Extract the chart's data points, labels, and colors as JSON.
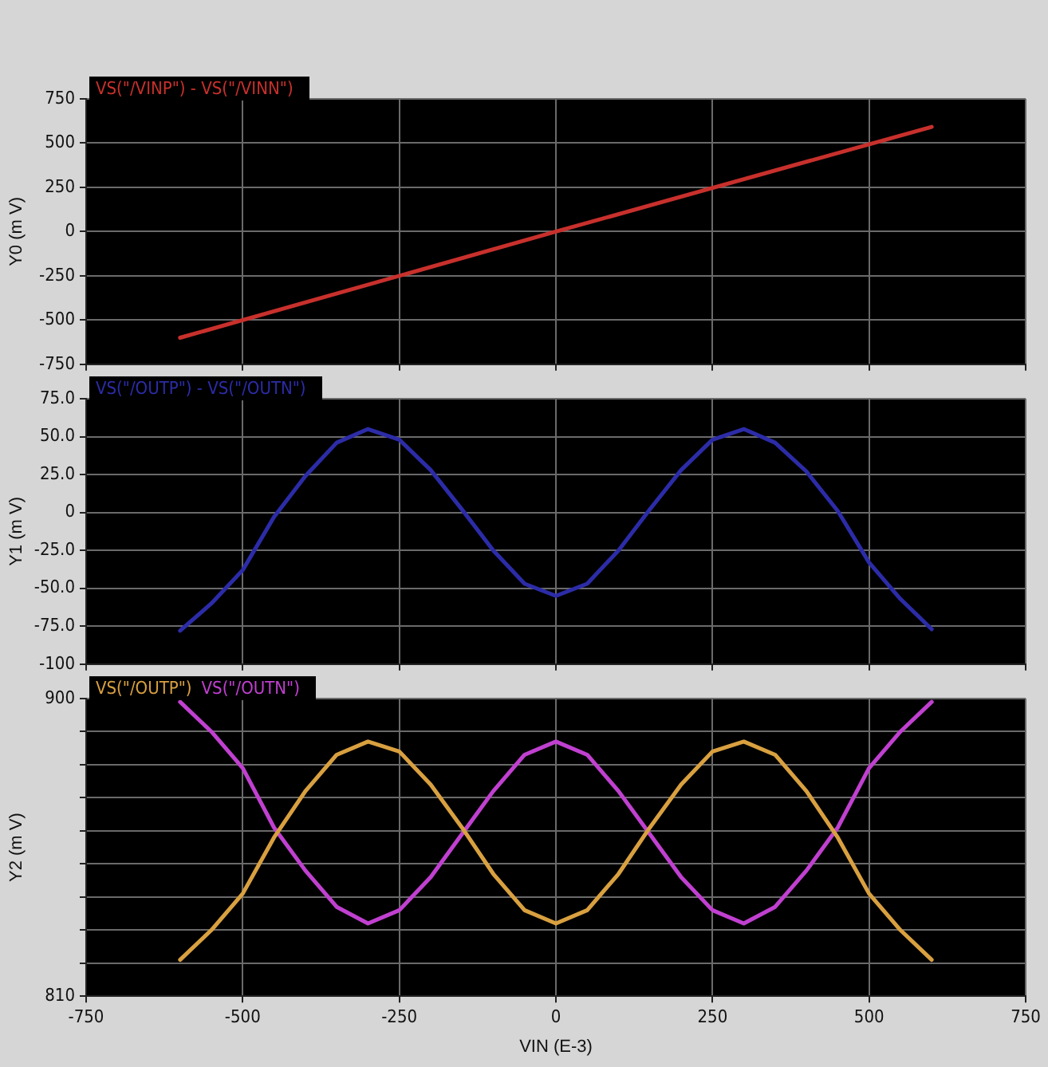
{
  "chart_data": [
    {
      "type": "line",
      "ylabel": "Y0 (m V)",
      "x": [
        -600,
        0,
        600
      ],
      "series": [
        {
          "name": "VS(\"/VINP\") - VS(\"/VINN\")",
          "color": "#c8302c",
          "values": [
            -600,
            0,
            592
          ]
        }
      ],
      "xlim": [
        -750,
        750
      ],
      "xticks": [
        -750,
        -500,
        -250,
        0,
        250,
        500,
        750
      ],
      "ylim": [
        -750,
        750
      ],
      "yticks": [
        -750,
        -500,
        -250,
        0,
        250,
        500,
        750
      ],
      "grid": true,
      "legend": "top left",
      "marker": "none",
      "tick_labels": "y"
    },
    {
      "type": "line",
      "ylabel": "Y1 (m V)",
      "x": [
        -600,
        -550,
        -500,
        -450,
        -400,
        -350,
        -300,
        -250,
        -200,
        -150,
        -100,
        -50,
        0,
        50,
        100,
        150,
        200,
        250,
        300,
        350,
        400,
        450,
        500,
        550,
        600
      ],
      "series": [
        {
          "name": "VS(\"/OUTP\") - VS(\"/OUTN\")",
          "color": "#2c2ca8",
          "values": [
            -78,
            -60,
            -38,
            -3,
            24,
            46,
            55,
            48,
            28,
            2,
            -25,
            -47,
            -55,
            -47,
            -25,
            2,
            28,
            48,
            55,
            46,
            27,
            1,
            -33,
            -57,
            -77
          ]
        }
      ],
      "xlim": [
        -750,
        750
      ],
      "xticks": [
        -750,
        -500,
        -250,
        0,
        250,
        500,
        750
      ],
      "ylim": [
        -100,
        75
      ],
      "yticks": [
        -100,
        {
          "value": -75,
          "label": "-75.0"
        },
        {
          "value": -50,
          "label": "-50.0"
        },
        {
          "value": -25,
          "label": "-25.0"
        },
        0,
        {
          "value": 25,
          "label": "25.0"
        },
        {
          "value": 50,
          "label": "50.0"
        },
        {
          "value": 75,
          "label": "75.0"
        }
      ],
      "grid": true,
      "legend": "top left",
      "marker": "none",
      "tick_labels": "y"
    },
    {
      "type": "line",
      "ylabel": "Y2 (m V)",
      "xlabel": "VIN (E-3)",
      "x": [
        -600,
        -550,
        -500,
        -450,
        -400,
        -350,
        -300,
        -250,
        -200,
        -150,
        -100,
        -50,
        0,
        50,
        100,
        150,
        200,
        250,
        300,
        350,
        400,
        450,
        500,
        550,
        600
      ],
      "series": [
        {
          "name": "VS(\"/OUTP\")",
          "color": "#d9a040",
          "values": [
            821,
            830,
            841,
            858,
            872,
            883,
            887,
            884,
            874,
            861,
            847,
            836,
            832,
            836,
            847,
            861,
            874,
            884,
            887,
            883,
            872,
            858,
            841,
            830,
            821
          ]
        },
        {
          "name": "VS(\"/OUTN\")",
          "color": "#c040d0",
          "values": [
            899,
            890,
            879,
            861,
            848,
            837,
            832,
            836,
            846,
            859,
            872,
            883,
            887,
            883,
            872,
            859,
            846,
            836,
            832,
            837,
            848,
            861,
            879,
            890,
            899
          ]
        }
      ],
      "xlim": [
        -750,
        750
      ],
      "xticks": [
        -750,
        -500,
        -250,
        0,
        250,
        500,
        750
      ],
      "ylim": [
        810,
        900
      ],
      "yticks": [
        810,
        {
          "value": 820,
          "label": null
        },
        {
          "value": 830,
          "label": null
        },
        {
          "value": 840,
          "label": null
        },
        {
          "value": 850,
          "label": null
        },
        {
          "value": 860,
          "label": null
        },
        {
          "value": 870,
          "label": null
        },
        {
          "value": 880,
          "label": null
        },
        {
          "value": 890,
          "label": null
        },
        900
      ],
      "grid": true,
      "legend": "top left",
      "marker": "none"
    }
  ]
}
